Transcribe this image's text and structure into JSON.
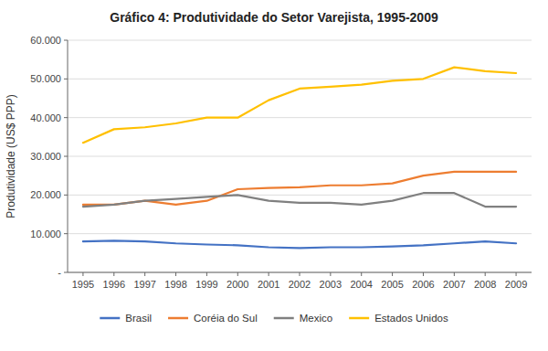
{
  "chart_data": {
    "type": "line",
    "title": "Gráfico 4: Produtividade do Setor Varejista, 1995-2009",
    "ylabel": "Produtividade (US$ PPP)",
    "x": [
      1995,
      1996,
      1997,
      1998,
      1999,
      2000,
      2001,
      2002,
      2003,
      2004,
      2005,
      2006,
      2007,
      2008,
      2009
    ],
    "xlim": [
      1994.5,
      2009.5
    ],
    "xticks": [
      1995,
      1996,
      1997,
      1998,
      1999,
      2000,
      2001,
      2002,
      2003,
      2004,
      2005,
      2006,
      2007,
      2008,
      2009
    ],
    "ylim": [
      0,
      60000
    ],
    "yticks": [
      {
        "value": 0,
        "label": "-"
      },
      {
        "value": 10000,
        "label": "10.000"
      },
      {
        "value": 20000,
        "label": "20.000"
      },
      {
        "value": 30000,
        "label": "30.000"
      },
      {
        "value": 40000,
        "label": "40.000"
      },
      {
        "value": 50000,
        "label": "50.000"
      },
      {
        "value": 60000,
        "label": "60.000"
      }
    ],
    "grid": true,
    "legend": "bottom",
    "series": [
      {
        "name": "Brasil",
        "color": "#4472C4",
        "values": [
          8000,
          8200,
          8000,
          7500,
          7200,
          7000,
          6500,
          6300,
          6500,
          6500,
          6700,
          7000,
          7500,
          8000,
          7500
        ]
      },
      {
        "name": "Coréia do Sul",
        "color": "#ED7D31",
        "values": [
          17500,
          17500,
          18500,
          17500,
          18500,
          21500,
          21800,
          22000,
          22500,
          22500,
          23000,
          25000,
          26000,
          26000,
          26000
        ]
      },
      {
        "name": "Mexico",
        "color": "#808080",
        "values": [
          17000,
          17500,
          18500,
          19000,
          19500,
          20000,
          18500,
          18000,
          18000,
          17500,
          18500,
          20500,
          20500,
          17000,
          17000
        ]
      },
      {
        "name": "Estados Unidos",
        "color": "#FFC000",
        "values": [
          33500,
          37000,
          37500,
          38500,
          40000,
          40000,
          44500,
          47500,
          48000,
          48500,
          49500,
          50000,
          53000,
          52000,
          51500
        ]
      }
    ]
  }
}
